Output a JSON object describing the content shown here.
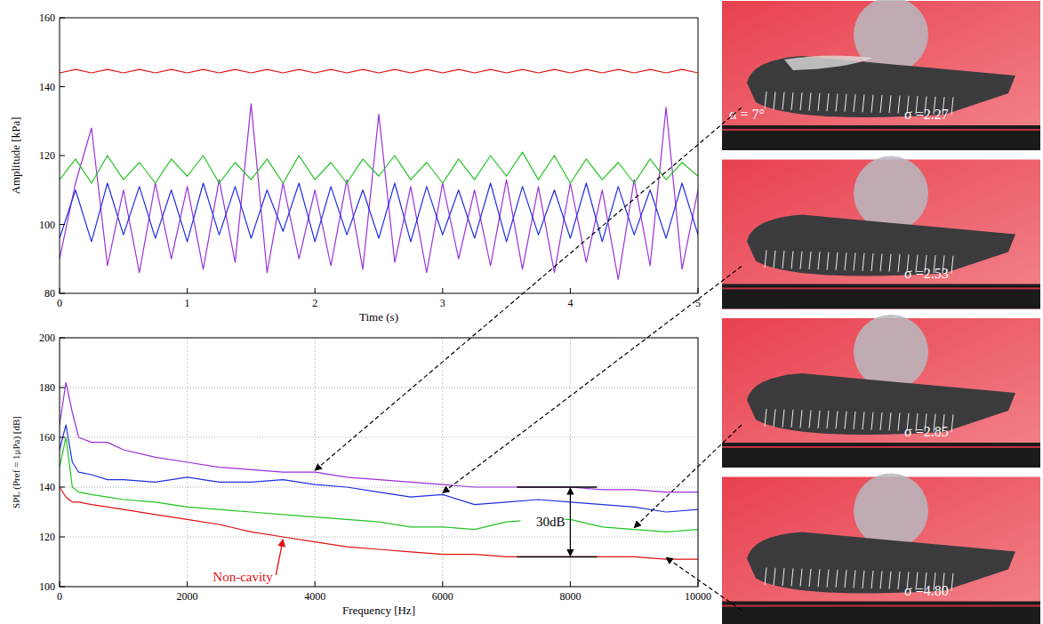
{
  "chart_data": [
    {
      "type": "line",
      "xlabel": "Time (s)",
      "ylabel": "Amplitude [kPa]",
      "xlim": [
        0,
        5
      ],
      "xticks": [
        0,
        1,
        2,
        3,
        4,
        5
      ],
      "ylim": [
        80,
        160
      ],
      "yticks": [
        80,
        100,
        120,
        140,
        160
      ],
      "grid": false,
      "x": [
        0,
        0.125,
        0.25,
        0.375,
        0.5,
        0.625,
        0.75,
        0.875,
        1,
        1.125,
        1.25,
        1.375,
        1.5,
        1.625,
        1.75,
        1.875,
        2,
        2.125,
        2.25,
        2.375,
        2.5,
        2.625,
        2.75,
        2.875,
        3,
        3.125,
        3.25,
        3.375,
        3.5,
        3.625,
        3.75,
        3.875,
        4,
        4.125,
        4.25,
        4.375,
        4.5,
        4.625,
        4.75,
        4.875,
        5
      ],
      "series": [
        {
          "color": "#9b30d9",
          "values": [
            90,
            112,
            128,
            88,
            110,
            86,
            112,
            90,
            111,
            87,
            113,
            89,
            135,
            86,
            112,
            90,
            110,
            88,
            113,
            87,
            132,
            89,
            111,
            86,
            112,
            90,
            110,
            88,
            113,
            87,
            111,
            86,
            112,
            89,
            110,
            84,
            113,
            88,
            134,
            87,
            110
          ]
        },
        {
          "color": "#1f2fe0",
          "values": [
            96,
            110,
            95,
            112,
            97,
            111,
            96,
            110,
            95,
            112,
            97,
            111,
            96,
            110,
            98,
            112,
            95,
            111,
            97,
            110,
            96,
            112,
            95,
            111,
            97,
            110,
            96,
            112,
            95,
            111,
            97,
            110,
            96,
            112,
            95,
            111,
            97,
            110,
            96,
            112,
            97
          ]
        },
        {
          "color": "#22c322",
          "values": [
            113,
            119,
            112,
            120,
            113,
            118,
            112,
            119,
            114,
            120,
            112,
            118,
            113,
            119,
            112,
            120,
            113,
            118,
            112,
            119,
            114,
            120,
            113,
            118,
            112,
            119,
            113,
            120,
            114,
            121,
            113,
            120,
            112,
            119,
            113,
            118,
            112,
            119,
            113,
            118,
            114
          ]
        },
        {
          "color": "#e01010",
          "values": [
            144,
            145,
            144,
            145,
            144,
            145,
            144,
            145,
            144,
            145,
            144,
            145,
            144,
            145,
            144,
            145,
            144,
            145,
            144,
            145,
            144,
            145,
            144,
            145,
            144,
            145,
            144,
            145,
            144,
            145,
            144,
            145,
            144,
            145,
            144,
            145,
            144,
            145,
            144,
            145,
            144
          ]
        }
      ]
    },
    {
      "type": "line",
      "xlabel": "Frequency [Hz]",
      "ylabel": "SPL (Pref = 1μPa) [dB]",
      "xlim": [
        0,
        10000
      ],
      "xticks": [
        0,
        2000,
        4000,
        6000,
        8000,
        10000
      ],
      "ylim": [
        100,
        200
      ],
      "yticks": [
        100,
        120,
        140,
        160,
        180,
        200
      ],
      "grid": true,
      "x": [
        0,
        100,
        200,
        300,
        500,
        750,
        1000,
        1500,
        2000,
        2500,
        3000,
        3500,
        4000,
        4500,
        5000,
        5500,
        6000,
        6500,
        7000,
        7500,
        8000,
        8500,
        9000,
        9500,
        10000
      ],
      "series": [
        {
          "color": "#9b30d9",
          "values": [
            165,
            182,
            170,
            160,
            158,
            158,
            155,
            152,
            150,
            148,
            147,
            146,
            146,
            144,
            143,
            142,
            141,
            140,
            140,
            140,
            140,
            139,
            139,
            138,
            138
          ]
        },
        {
          "color": "#1f2fe0",
          "values": [
            155,
            165,
            150,
            146,
            145,
            143,
            143,
            142,
            144,
            142,
            142,
            143,
            141,
            140,
            138,
            136,
            137,
            133,
            134,
            135,
            134,
            133,
            132,
            130,
            131
          ]
        },
        {
          "color": "#22c322",
          "values": [
            148,
            160,
            140,
            138,
            137,
            136,
            135,
            134,
            132,
            131,
            130,
            129,
            128,
            127,
            126,
            124,
            124,
            123,
            126,
            127,
            127,
            124,
            123,
            122,
            123
          ]
        },
        {
          "color": "#e01010",
          "values": [
            140,
            136,
            134,
            134,
            133,
            132,
            131,
            129,
            127,
            125,
            122,
            120,
            118,
            116,
            115,
            114,
            113,
            113,
            112,
            112,
            112,
            112,
            112,
            111,
            111
          ]
        }
      ],
      "annotations": [
        {
          "text": "Non-cavity",
          "color": "#e01010",
          "x": 2400,
          "y": 104,
          "target_x": 3500,
          "target_y": 119
        },
        {
          "text": "30dB",
          "x": 8000,
          "y1": 112,
          "y2": 140
        }
      ]
    }
  ],
  "images": {
    "alpha_label": "α = 7°",
    "labels": [
      "σ =2.27",
      "σ =2.53",
      "σ =2.85",
      "σ =4.80"
    ],
    "arrow_x": [
      4000,
      6000,
      9000,
      9500
    ]
  }
}
